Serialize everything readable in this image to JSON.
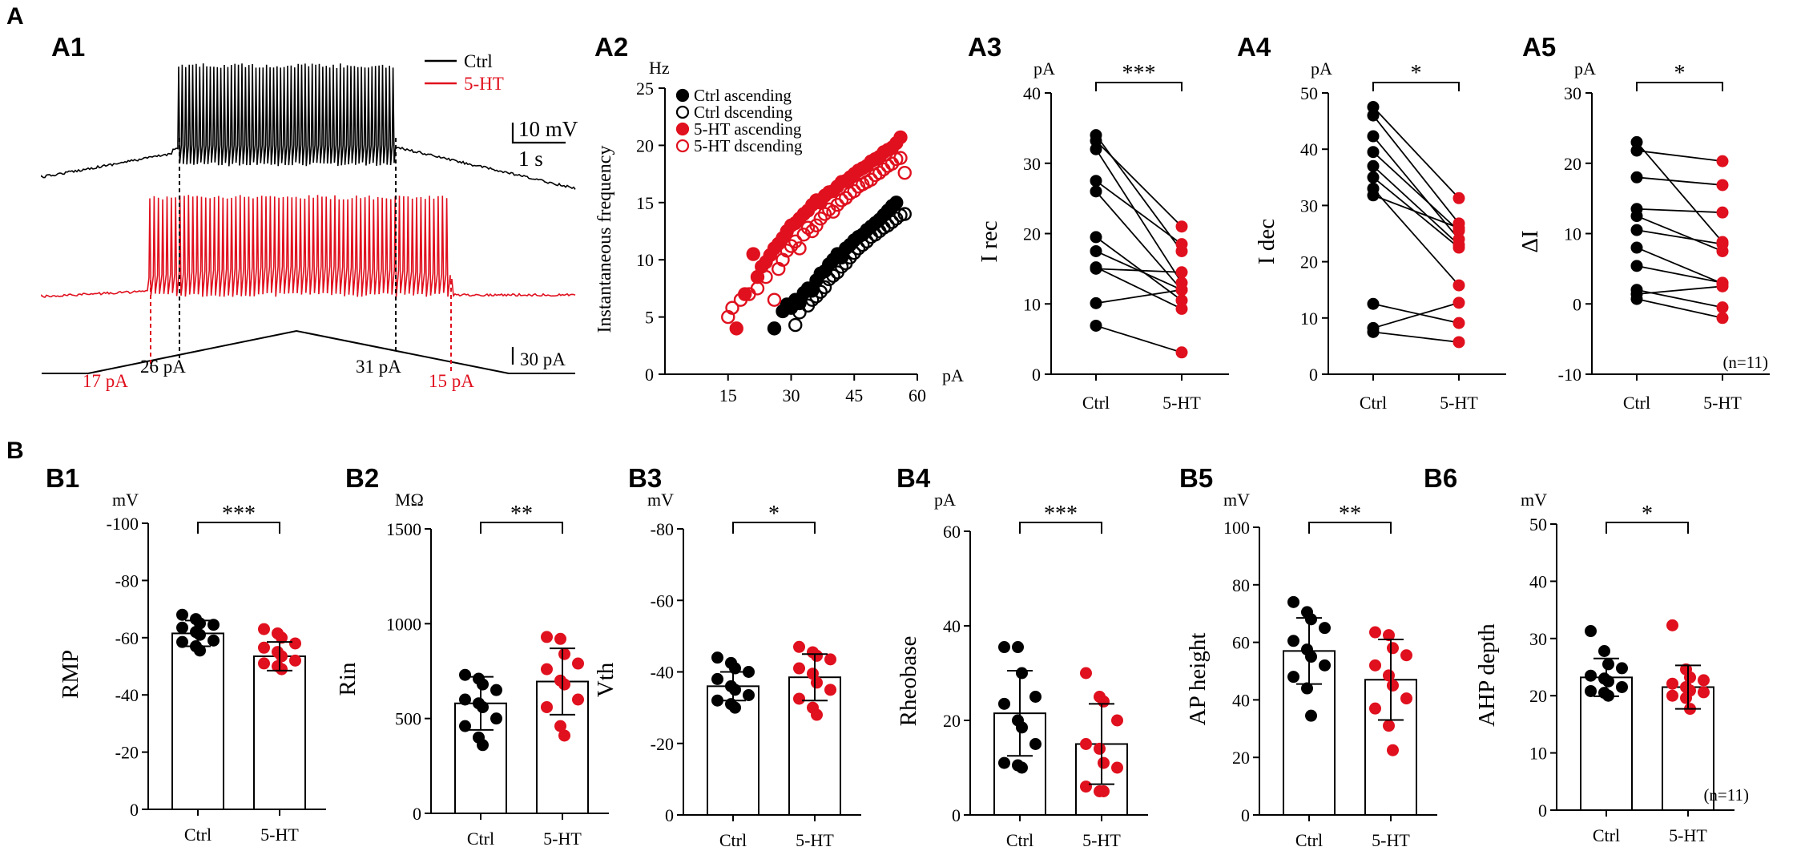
{
  "section_labels": {
    "A": "A",
    "B": "B"
  },
  "colors": {
    "ctrl": "#000000",
    "ht": "#e0101e",
    "axis": "#000000"
  },
  "A1": {
    "panel": "A1",
    "legend": [
      {
        "name": "Ctrl",
        "color": "#000000"
      },
      {
        "name": "5-HT",
        "color": "#e0101e"
      }
    ],
    "scale_mv": "10 mV",
    "scale_s": "1 s",
    "scale_pa": "30 pA",
    "currents": {
      "ctrl_onset": "26 pA",
      "ctrl_offset": "31 pA",
      "ht_onset": "17 pA",
      "ht_offset": "15 pA"
    }
  },
  "chart_data": [
    {
      "id": "A2",
      "panel": "A2",
      "type": "scatter",
      "title": "",
      "xlabel": "pA",
      "ylabel": "Instantaneous frequency",
      "yunit": "Hz",
      "xlim": [
        0,
        60
      ],
      "ylim": [
        0,
        25
      ],
      "xticks": [
        15,
        30,
        45,
        60
      ],
      "yticks": [
        0,
        5,
        10,
        15,
        20,
        25
      ],
      "legend": [
        "Ctrl ascending",
        "Ctrl dscending",
        "5-HT ascending",
        "5-HT dscending"
      ],
      "series": [
        {
          "name": "Ctrl ascending",
          "color": "#000000",
          "filled": true,
          "x": [
            26,
            28,
            29,
            30,
            31,
            32,
            33,
            34,
            35,
            36,
            37,
            38,
            39,
            40,
            41,
            42,
            43,
            44,
            45,
            46,
            47,
            48,
            49,
            50,
            51,
            52,
            53,
            54,
            55
          ],
          "y": [
            4.0,
            5.5,
            6.1,
            5.8,
            6.5,
            6.2,
            7.1,
            7.5,
            7.3,
            8.2,
            8.8,
            9.0,
            9.6,
            10.0,
            10.5,
            10.2,
            11.0,
            11.3,
            11.7,
            12.0,
            12.2,
            12.6,
            12.9,
            13.2,
            13.5,
            13.9,
            14.3,
            14.7,
            15.0
          ]
        },
        {
          "name": "Ctrl dscending",
          "color": "#000000",
          "filled": false,
          "x": [
            31,
            32,
            34,
            35,
            36,
            37,
            38,
            39,
            40,
            41,
            42,
            43,
            44,
            45,
            46,
            47,
            48,
            49,
            50,
            51,
            52,
            53,
            54,
            55,
            56,
            57
          ],
          "y": [
            4.3,
            5.4,
            6.0,
            6.5,
            6.8,
            7.2,
            7.6,
            8.3,
            8.6,
            8.9,
            9.4,
            9.7,
            10.2,
            10.6,
            11.0,
            11.3,
            11.6,
            12.0,
            12.2,
            12.5,
            12.8,
            13.0,
            13.3,
            13.6,
            13.9,
            14.0
          ]
        },
        {
          "name": "5-HT ascending",
          "color": "#e0101e",
          "filled": true,
          "x": [
            17,
            19,
            21,
            22,
            23,
            24,
            25,
            26,
            27,
            28,
            29,
            30,
            31,
            32,
            33,
            34,
            35,
            36,
            37,
            38,
            39,
            40,
            41,
            42,
            43,
            44,
            45,
            46,
            47,
            48,
            49,
            50,
            51,
            52,
            53,
            54,
            55,
            56
          ],
          "y": [
            4.0,
            7.0,
            10.5,
            8.5,
            9.4,
            9.8,
            10.4,
            11.0,
            11.4,
            11.9,
            12.5,
            13.0,
            13.2,
            13.6,
            14.0,
            14.3,
            14.8,
            15.2,
            15.0,
            15.6,
            15.9,
            16.0,
            16.4,
            16.8,
            16.9,
            17.2,
            17.5,
            17.8,
            18.0,
            18.2,
            18.6,
            18.8,
            19.0,
            19.4,
            19.6,
            19.8,
            20.2,
            20.7
          ]
        },
        {
          "name": "5-HT dscending",
          "color": "#e0101e",
          "filled": false,
          "x": [
            15,
            16,
            18,
            20,
            22,
            24,
            26,
            27,
            28,
            29,
            30,
            31,
            32,
            33,
            34,
            35,
            36,
            37,
            38,
            39,
            40,
            41,
            42,
            43,
            44,
            45,
            46,
            47,
            48,
            49,
            50,
            51,
            52,
            53,
            54,
            55,
            56,
            57
          ],
          "y": [
            5.0,
            5.8,
            6.5,
            7.0,
            7.5,
            8.5,
            6.5,
            9.2,
            10.0,
            10.8,
            11.2,
            11.6,
            11.0,
            12.2,
            12.8,
            12.5,
            13.0,
            13.6,
            14.0,
            14.4,
            14.2,
            14.8,
            15.2,
            15.4,
            15.8,
            16.0,
            16.4,
            16.6,
            16.8,
            17.0,
            17.4,
            17.6,
            17.9,
            18.2,
            18.4,
            18.8,
            18.9,
            17.6
          ]
        }
      ]
    },
    {
      "id": "A3",
      "panel": "A3",
      "type": "paired",
      "ylabel": "I rec",
      "yunit": "pA",
      "sig": "***",
      "ylim": [
        0,
        40
      ],
      "yticks": [
        0,
        10,
        20,
        30,
        40
      ],
      "categories": [
        "Ctrl",
        "5-HT"
      ],
      "ctrl": [
        34.0,
        33.2,
        32.0,
        27.5,
        26.0,
        19.5,
        17.5,
        15.2,
        15.0,
        10.1,
        6.9
      ],
      "ht": [
        17.5,
        21.0,
        13.0,
        18.5,
        12.0,
        10.5,
        12.0,
        9.3,
        14.5,
        12.0,
        3.1
      ]
    },
    {
      "id": "A4",
      "panel": "A4",
      "type": "paired",
      "ylabel": "I dec",
      "yunit": "pA",
      "sig": "*",
      "ylim": [
        0,
        50
      ],
      "yticks": [
        0,
        10,
        20,
        30,
        40,
        50
      ],
      "categories": [
        "Ctrl",
        "5-HT"
      ],
      "ctrl": [
        47.5,
        46.0,
        42.3,
        39.5,
        37.0,
        35.0,
        33.0,
        31.8,
        12.5,
        8.2,
        7.5
      ],
      "ht": [
        31.3,
        26.8,
        24.0,
        25.5,
        23.0,
        22.5,
        15.8,
        26.0,
        9.1,
        12.7,
        5.7
      ]
    },
    {
      "id": "A5",
      "panel": "A5",
      "type": "paired",
      "ylabel": "ΔI",
      "yunit": "pA",
      "sig": "*",
      "n_label": "(n=11)",
      "ylim": [
        -10,
        30
      ],
      "yticks": [
        -10,
        0,
        10,
        20,
        30
      ],
      "categories": [
        "Ctrl",
        "5-HT"
      ],
      "ctrl": [
        23.0,
        21.8,
        18.0,
        13.5,
        12.5,
        10.5,
        8.0,
        5.4,
        2.0,
        1.4,
        0.7
      ],
      "ht": [
        8.8,
        20.3,
        16.9,
        13.0,
        7.5,
        8.5,
        2.9,
        3.0,
        -0.5,
        2.5,
        -2.0
      ]
    },
    {
      "id": "B1",
      "panel": "B1",
      "type": "bar_scatter",
      "ylabel": "RMP",
      "yunit": "mV",
      "sig": "***",
      "ylim": [
        0,
        -100
      ],
      "yticks": [
        0,
        -20,
        -40,
        -60,
        -80,
        -100
      ],
      "categories": [
        "Ctrl",
        "5-HT"
      ],
      "means": [
        -61.5,
        -53.5
      ],
      "sd": [
        4.5,
        5.0
      ],
      "ctrl_points": [
        -68.0,
        -66.5,
        -65.0,
        -64.5,
        -63.5,
        -62.0,
        -61.0,
        -59.0,
        -58.5,
        -57.0,
        -55.5
      ],
      "ht_points": [
        -63.0,
        -61.5,
        -60.0,
        -58.0,
        -56.5,
        -55.0,
        -53.5,
        -52.0,
        -51.0,
        -50.0,
        -49.0
      ]
    },
    {
      "id": "B2",
      "panel": "B2",
      "type": "bar_scatter",
      "ylabel": "Rin",
      "yunit": "MΩ",
      "sig": "**",
      "ylim": [
        0,
        1500
      ],
      "yticks": [
        0,
        500,
        1000,
        1500
      ],
      "categories": [
        "Ctrl",
        "5-HT"
      ],
      "means": [
        580,
        695
      ],
      "sd": [
        140,
        175
      ],
      "ctrl_points": [
        730,
        710,
        680,
        650,
        600,
        580,
        560,
        500,
        460,
        400,
        360
      ],
      "ht_points": [
        930,
        920,
        840,
        790,
        760,
        700,
        680,
        600,
        560,
        460,
        410
      ]
    },
    {
      "id": "B3",
      "panel": "B3",
      "type": "bar_scatter",
      "ylabel": "Vth",
      "yunit": "mV",
      "sig": "*",
      "ylim": [
        0,
        -80
      ],
      "yticks": [
        0,
        -20,
        -40,
        -60,
        -80
      ],
      "categories": [
        "Ctrl",
        "5-HT"
      ],
      "means": [
        -36.0,
        -38.5
      ],
      "sd": [
        4.0,
        6.5
      ],
      "ctrl_points": [
        -44.0,
        -42.5,
        -41.0,
        -40.0,
        -38.0,
        -36.0,
        -35.0,
        -33.5,
        -32.0,
        -31.0,
        -30.0
      ],
      "ht_points": [
        -47.0,
        -45.5,
        -44.5,
        -43.5,
        -41.0,
        -39.5,
        -37.0,
        -35.0,
        -32.5,
        -30.0,
        -28.0
      ]
    },
    {
      "id": "B4",
      "panel": "B4",
      "type": "bar_scatter",
      "ylabel": "Rheobase",
      "yunit": "pA",
      "sig": "***",
      "ylim": [
        0,
        60
      ],
      "yticks": [
        0,
        20,
        40,
        60
      ],
      "categories": [
        "Ctrl",
        "5-HT"
      ],
      "means": [
        21.5,
        15.0
      ],
      "sd": [
        9.0,
        8.5
      ],
      "ctrl_points": [
        35.5,
        35.5,
        30.0,
        25.0,
        23.5,
        20.0,
        18.5,
        15.0,
        11.0,
        10.5,
        10.0
      ],
      "ht_points": [
        30.0,
        25.0,
        24.0,
        20.0,
        15.0,
        14.0,
        11.0,
        10.0,
        6.0,
        5.0,
        5.0
      ]
    },
    {
      "id": "B5",
      "panel": "B5",
      "type": "bar_scatter",
      "ylabel": "AP height",
      "yunit": "mV",
      "sig": "**",
      "ylim": [
        0,
        100
      ],
      "yticks": [
        0,
        20,
        40,
        60,
        80,
        100
      ],
      "categories": [
        "Ctrl",
        "5-HT"
      ],
      "means": [
        57.0,
        47.0
      ],
      "sd": [
        11.5,
        14.0
      ],
      "ctrl_points": [
        74.0,
        70.5,
        68.0,
        65.0,
        60.5,
        57.5,
        55.0,
        52.0,
        48.0,
        44.0,
        34.5
      ],
      "ht_points": [
        63.5,
        62.5,
        58.0,
        55.5,
        52.0,
        48.5,
        45.0,
        40.5,
        37.0,
        31.0,
        22.5
      ]
    },
    {
      "id": "B6",
      "panel": "B6",
      "type": "bar_scatter",
      "ylabel": "AHP depth",
      "yunit": "mV",
      "sig": "*",
      "n_label": "(n=11)",
      "ylim": [
        0,
        50
      ],
      "yticks": [
        0,
        10,
        20,
        30,
        40,
        50
      ],
      "categories": [
        "Ctrl",
        "5-HT"
      ],
      "means": [
        23.2,
        21.5
      ],
      "sd": [
        3.3,
        3.8
      ],
      "ctrl_points": [
        31.3,
        27.8,
        25.5,
        24.8,
        23.5,
        23.0,
        22.5,
        21.5,
        20.8,
        20.5,
        20.0
      ],
      "ht_points": [
        32.3,
        24.6,
        23.2,
        22.7,
        22.1,
        21.5,
        20.9,
        20.6,
        20.0,
        19.6,
        17.7
      ]
    }
  ]
}
